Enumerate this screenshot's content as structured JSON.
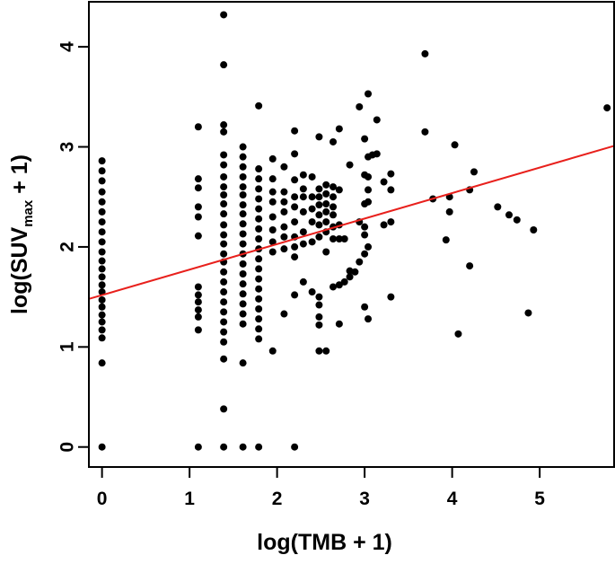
{
  "chart_data": {
    "type": "scatter",
    "title": "",
    "xlabel": "log(TMB + 1)",
    "ylabel": {
      "prefix": "log(SUV",
      "subscript": "max",
      "suffix": " + 1)"
    },
    "xlim": [
      -0.15,
      5.85
    ],
    "ylim": [
      -0.2,
      4.45
    ],
    "x_ticks": [
      0,
      1,
      2,
      3,
      4,
      5
    ],
    "y_ticks": [
      0,
      1,
      2,
      3,
      4
    ],
    "grid": false,
    "legend": "none",
    "point_color": "#000000",
    "line_color": "#e8201c",
    "regression_line": {
      "x": [
        -0.15,
        5.85
      ],
      "y": [
        1.48,
        3.01
      ]
    },
    "points": [
      [
        0,
        2.86
      ],
      [
        0,
        2.76
      ],
      [
        0,
        2.66
      ],
      [
        0,
        2.55
      ],
      [
        0,
        2.45
      ],
      [
        0,
        2.35
      ],
      [
        0,
        2.25
      ],
      [
        0,
        2.15
      ],
      [
        0,
        2.05
      ],
      [
        0,
        1.95
      ],
      [
        0,
        1.86
      ],
      [
        0,
        1.78
      ],
      [
        0,
        1.7
      ],
      [
        0,
        1.62
      ],
      [
        0,
        1.55
      ],
      [
        0,
        1.47
      ],
      [
        0,
        1.4
      ],
      [
        0,
        1.32
      ],
      [
        0,
        1.25
      ],
      [
        0,
        1.17
      ],
      [
        0,
        1.09
      ],
      [
        0,
        0.84
      ],
      [
        0,
        0.0
      ],
      [
        1.1,
        3.2
      ],
      [
        1.1,
        2.68
      ],
      [
        1.1,
        2.59
      ],
      [
        1.1,
        2.4
      ],
      [
        1.1,
        2.3
      ],
      [
        1.1,
        2.11
      ],
      [
        1.1,
        1.6
      ],
      [
        1.1,
        1.52
      ],
      [
        1.1,
        1.45
      ],
      [
        1.1,
        1.37
      ],
      [
        1.1,
        1.3
      ],
      [
        1.1,
        1.17
      ],
      [
        1.1,
        0.0
      ],
      [
        1.39,
        4.32
      ],
      [
        1.39,
        3.82
      ],
      [
        1.39,
        3.22
      ],
      [
        1.39,
        3.15
      ],
      [
        1.39,
        2.92
      ],
      [
        1.39,
        2.82
      ],
      [
        1.39,
        2.7
      ],
      [
        1.39,
        2.6
      ],
      [
        1.39,
        2.52
      ],
      [
        1.39,
        2.43
      ],
      [
        1.39,
        2.33
      ],
      [
        1.39,
        2.22
      ],
      [
        1.39,
        2.12
      ],
      [
        1.39,
        2.03
      ],
      [
        1.39,
        1.93
      ],
      [
        1.39,
        1.85
      ],
      [
        1.39,
        1.75
      ],
      [
        1.39,
        1.65
      ],
      [
        1.39,
        1.55
      ],
      [
        1.39,
        1.45
      ],
      [
        1.39,
        1.35
      ],
      [
        1.39,
        1.25
      ],
      [
        1.39,
        1.15
      ],
      [
        1.39,
        1.05
      ],
      [
        1.39,
        0.88
      ],
      [
        1.39,
        0.38
      ],
      [
        1.39,
        0.0
      ],
      [
        1.61,
        3.0
      ],
      [
        1.61,
        2.9
      ],
      [
        1.61,
        2.8
      ],
      [
        1.61,
        2.7
      ],
      [
        1.61,
        2.6
      ],
      [
        1.61,
        2.52
      ],
      [
        1.61,
        2.42
      ],
      [
        1.61,
        2.33
      ],
      [
        1.61,
        2.23
      ],
      [
        1.61,
        2.13
      ],
      [
        1.61,
        2.03
      ],
      [
        1.61,
        1.93
      ],
      [
        1.61,
        1.83
      ],
      [
        1.61,
        1.73
      ],
      [
        1.61,
        1.63
      ],
      [
        1.61,
        1.53
      ],
      [
        1.61,
        1.43
      ],
      [
        1.61,
        1.33
      ],
      [
        1.61,
        1.23
      ],
      [
        1.61,
        0.84
      ],
      [
        1.61,
        0.0
      ],
      [
        1.79,
        3.41
      ],
      [
        1.79,
        2.78
      ],
      [
        1.79,
        2.68
      ],
      [
        1.79,
        2.58
      ],
      [
        1.79,
        2.48
      ],
      [
        1.79,
        2.38
      ],
      [
        1.79,
        2.28
      ],
      [
        1.79,
        2.18
      ],
      [
        1.79,
        2.08
      ],
      [
        1.79,
        1.98
      ],
      [
        1.79,
        1.88
      ],
      [
        1.79,
        1.78
      ],
      [
        1.79,
        1.68
      ],
      [
        1.79,
        1.58
      ],
      [
        1.79,
        1.48
      ],
      [
        1.79,
        1.38
      ],
      [
        1.79,
        1.28
      ],
      [
        1.79,
        1.18
      ],
      [
        1.79,
        1.08
      ],
      [
        1.79,
        0.0
      ],
      [
        1.95,
        2.88
      ],
      [
        1.95,
        2.68
      ],
      [
        1.95,
        2.55
      ],
      [
        1.95,
        2.45
      ],
      [
        1.95,
        2.3
      ],
      [
        1.95,
        2.17
      ],
      [
        1.95,
        2.05
      ],
      [
        1.95,
        1.95
      ],
      [
        1.95,
        0.96
      ],
      [
        2.08,
        2.8
      ],
      [
        2.08,
        2.55
      ],
      [
        2.08,
        2.45
      ],
      [
        2.08,
        2.35
      ],
      [
        2.08,
        2.2
      ],
      [
        2.08,
        2.1
      ],
      [
        2.08,
        1.98
      ],
      [
        2.08,
        1.33
      ],
      [
        2.2,
        3.16
      ],
      [
        2.2,
        2.93
      ],
      [
        2.2,
        2.67
      ],
      [
        2.2,
        2.5
      ],
      [
        2.2,
        2.4
      ],
      [
        2.2,
        2.25
      ],
      [
        2.2,
        2.1
      ],
      [
        2.2,
        2.0
      ],
      [
        2.2,
        1.9
      ],
      [
        2.2,
        1.52
      ],
      [
        2.2,
        0.0
      ],
      [
        2.3,
        2.72
      ],
      [
        2.3,
        2.58
      ],
      [
        2.3,
        2.5
      ],
      [
        2.3,
        2.35
      ],
      [
        2.3,
        2.15
      ],
      [
        2.3,
        2.03
      ],
      [
        2.3,
        1.65
      ],
      [
        2.4,
        2.7
      ],
      [
        2.4,
        2.5
      ],
      [
        2.4,
        2.38
      ],
      [
        2.4,
        2.25
      ],
      [
        2.4,
        2.05
      ],
      [
        2.4,
        1.55
      ],
      [
        2.48,
        3.1
      ],
      [
        2.48,
        2.58
      ],
      [
        2.48,
        2.5
      ],
      [
        2.48,
        2.42
      ],
      [
        2.48,
        2.32
      ],
      [
        2.48,
        2.22
      ],
      [
        2.48,
        2.1
      ],
      [
        2.48,
        1.5
      ],
      [
        2.48,
        1.42
      ],
      [
        2.48,
        1.3
      ],
      [
        2.48,
        1.22
      ],
      [
        2.48,
        0.96
      ],
      [
        2.56,
        2.62
      ],
      [
        2.56,
        2.53
      ],
      [
        2.56,
        2.43
      ],
      [
        2.56,
        2.35
      ],
      [
        2.56,
        2.25
      ],
      [
        2.56,
        2.15
      ],
      [
        2.56,
        1.95
      ],
      [
        2.56,
        0.96
      ],
      [
        2.64,
        3.05
      ],
      [
        2.64,
        2.6
      ],
      [
        2.64,
        2.5
      ],
      [
        2.64,
        2.4
      ],
      [
        2.64,
        2.32
      ],
      [
        2.64,
        2.2
      ],
      [
        2.64,
        2.08
      ],
      [
        2.64,
        1.6
      ],
      [
        2.71,
        3.18
      ],
      [
        2.71,
        2.57
      ],
      [
        2.71,
        2.22
      ],
      [
        2.71,
        2.08
      ],
      [
        2.71,
        1.62
      ],
      [
        2.71,
        1.23
      ],
      [
        2.77,
        2.08
      ],
      [
        2.77,
        1.65
      ],
      [
        2.83,
        2.82
      ],
      [
        2.83,
        1.76
      ],
      [
        2.83,
        1.7
      ],
      [
        2.89,
        1.75
      ],
      [
        2.94,
        3.4
      ],
      [
        2.94,
        2.25
      ],
      [
        2.94,
        1.85
      ],
      [
        3.0,
        3.08
      ],
      [
        3.0,
        2.72
      ],
      [
        3.0,
        2.43
      ],
      [
        3.0,
        2.2
      ],
      [
        3.0,
        2.12
      ],
      [
        3.0,
        1.93
      ],
      [
        3.0,
        1.4
      ],
      [
        3.04,
        3.53
      ],
      [
        3.04,
        2.9
      ],
      [
        3.04,
        2.7
      ],
      [
        3.04,
        2.57
      ],
      [
        3.04,
        2.45
      ],
      [
        3.04,
        2.0
      ],
      [
        3.04,
        1.28
      ],
      [
        3.09,
        2.92
      ],
      [
        3.14,
        3.27
      ],
      [
        3.14,
        2.93
      ],
      [
        3.22,
        2.65
      ],
      [
        3.22,
        2.22
      ],
      [
        3.3,
        2.73
      ],
      [
        3.3,
        2.57
      ],
      [
        3.3,
        2.25
      ],
      [
        3.3,
        1.5
      ],
      [
        3.69,
        3.93
      ],
      [
        3.69,
        3.15
      ],
      [
        3.78,
        2.48
      ],
      [
        3.93,
        2.07
      ],
      [
        3.97,
        2.5
      ],
      [
        3.97,
        2.35
      ],
      [
        4.03,
        3.02
      ],
      [
        4.07,
        1.13
      ],
      [
        4.2,
        2.57
      ],
      [
        4.2,
        1.81
      ],
      [
        4.25,
        2.75
      ],
      [
        4.52,
        2.4
      ],
      [
        4.65,
        2.32
      ],
      [
        4.74,
        2.27
      ],
      [
        4.87,
        1.34
      ],
      [
        4.93,
        2.17
      ],
      [
        5.77,
        3.39
      ]
    ]
  }
}
